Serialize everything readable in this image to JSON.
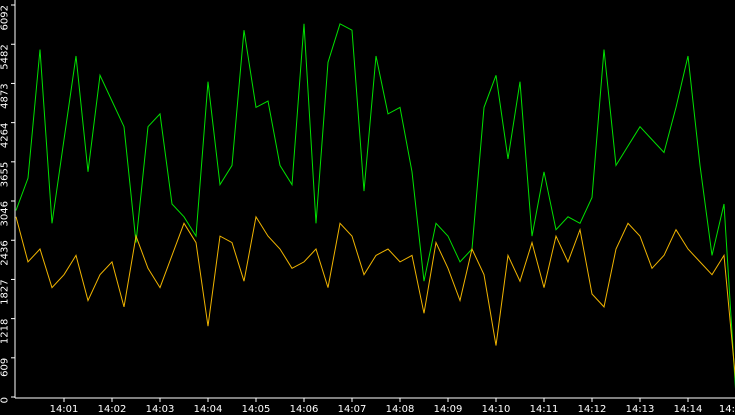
{
  "chart_data": {
    "type": "line",
    "x": [
      0,
      0.25,
      0.5,
      0.75,
      1,
      1.25,
      1.5,
      1.75,
      2,
      2.25,
      2.5,
      2.75,
      3,
      3.25,
      3.5,
      3.75,
      4,
      4.25,
      4.5,
      4.75,
      5,
      5.25,
      5.5,
      5.75,
      6,
      6.25,
      6.5,
      6.75,
      7,
      7.25,
      7.5,
      7.75,
      8,
      8.25,
      8.5,
      8.75,
      9,
      9.25,
      9.5,
      9.75,
      10,
      10.25,
      10.5,
      10.75,
      11,
      11.25,
      11.5,
      11.75,
      12,
      12.25,
      12.5,
      12.75,
      13,
      13.25,
      13.5,
      13.75,
      14,
      14.25,
      14.5,
      14.75,
      15
    ],
    "series": [
      {
        "color": "#00e000",
        "values": [
          2900,
          3400,
          5400,
          2700,
          4000,
          5300,
          3500,
          5000,
          4600,
          4200,
          2400,
          4200,
          4400,
          3000,
          2800,
          2500,
          4900,
          3300,
          3600,
          5700,
          4500,
          4600,
          3600,
          3300,
          5800,
          2700,
          5200,
          5800,
          5700,
          3200,
          5300,
          4400,
          4500,
          3500,
          1800,
          2700,
          2500,
          2100,
          2300,
          4500,
          5000,
          3700,
          4900,
          2500,
          3500,
          2600,
          2800,
          2700,
          3100,
          5400,
          3600,
          3900,
          4200,
          4000,
          3800,
          4500,
          5300,
          3600,
          2200,
          3000,
          0
        ]
      },
      {
        "color": "#f0b400",
        "values": [
          2800,
          2100,
          2300,
          1700,
          1900,
          2200,
          1500,
          1900,
          2100,
          1400,
          2500,
          2000,
          1700,
          2200,
          2700,
          2400,
          1100,
          2500,
          2400,
          1800,
          2800,
          2500,
          2300,
          2000,
          2100,
          2300,
          1700,
          2700,
          2500,
          1900,
          2200,
          2300,
          2100,
          2200,
          1300,
          2400,
          2000,
          1500,
          2300,
          1900,
          800,
          2200,
          1800,
          2400,
          1700,
          2500,
          2100,
          2600,
          1600,
          1400,
          2300,
          2700,
          2500,
          2000,
          2200,
          2600,
          2300,
          2100,
          1900,
          2200,
          200
        ]
      }
    ],
    "xlim": [
      0,
      15
    ],
    "xticks": [
      {
        "value": 1,
        "label": "14:01"
      },
      {
        "value": 2,
        "label": "14:02"
      },
      {
        "value": 3,
        "label": "14:03"
      },
      {
        "value": 4,
        "label": "14:04"
      },
      {
        "value": 5,
        "label": "14:05"
      },
      {
        "value": 6,
        "label": "14:06"
      },
      {
        "value": 7,
        "label": "14:07"
      },
      {
        "value": 8,
        "label": "14:08"
      },
      {
        "value": 9,
        "label": "14:09"
      },
      {
        "value": 10,
        "label": "14:10"
      },
      {
        "value": 11,
        "label": "14:11"
      },
      {
        "value": 12,
        "label": "14:12"
      },
      {
        "value": 13,
        "label": "14:13"
      },
      {
        "value": 14,
        "label": "14:14"
      },
      {
        "value": 15,
        "label": "14:"
      }
    ],
    "ylim": [
      0,
      6092
    ],
    "yticks": [
      0,
      609,
      1218,
      1827,
      2436,
      3046,
      3655,
      4264,
      4873,
      5482,
      6092
    ]
  }
}
